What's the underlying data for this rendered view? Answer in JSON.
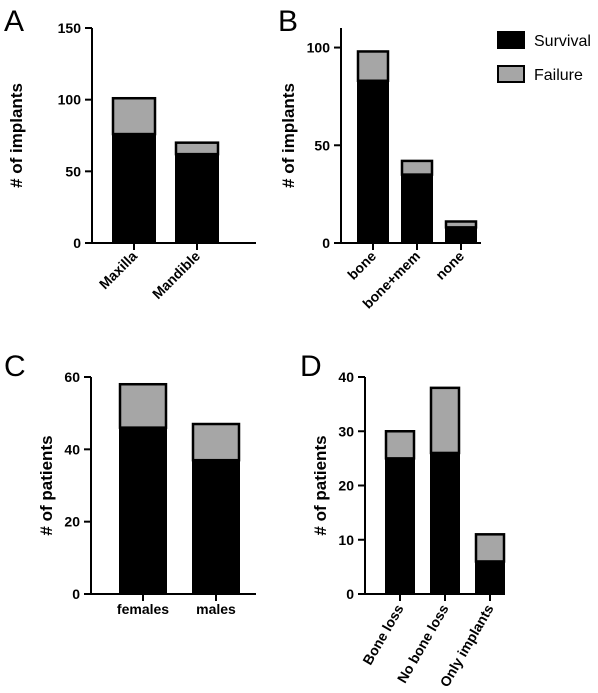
{
  "colors": {
    "survival": "#000000",
    "failure": "#a6a6a6",
    "outline": "#000000"
  },
  "legend": [
    {
      "label": "Survival",
      "color": "#000000"
    },
    {
      "label": "Failure",
      "color": "#a6a6a6"
    }
  ],
  "chart_data": [
    {
      "type": "bar",
      "panel": "A",
      "ylabel": "# of implants",
      "ylim": [
        0,
        150
      ],
      "yticks": [
        0,
        50,
        100,
        150
      ],
      "categories": [
        "Maxilla",
        "Mandible"
      ],
      "series": [
        {
          "name": "Survival",
          "values": [
            76,
            62
          ]
        },
        {
          "name": "Failure",
          "values": [
            25,
            8
          ]
        }
      ]
    },
    {
      "type": "bar",
      "panel": "B",
      "ylabel": "# of implants",
      "ylim": [
        0,
        110
      ],
      "yticks": [
        0,
        50,
        100
      ],
      "categories": [
        "bone",
        "bone+mem",
        "none"
      ],
      "series": [
        {
          "name": "Survival",
          "values": [
            83,
            35,
            8
          ]
        },
        {
          "name": "Failure",
          "values": [
            15,
            7,
            3
          ]
        }
      ]
    },
    {
      "type": "bar",
      "panel": "C",
      "ylabel": "# of patients",
      "ylim": [
        0,
        60
      ],
      "yticks": [
        0,
        20,
        40,
        60
      ],
      "categories": [
        "females",
        "males"
      ],
      "series": [
        {
          "name": "Survival",
          "values": [
            46,
            37
          ]
        },
        {
          "name": "Failure",
          "values": [
            12,
            10
          ]
        }
      ]
    },
    {
      "type": "bar",
      "panel": "D",
      "ylabel": "# of patients",
      "ylim": [
        0,
        40
      ],
      "yticks": [
        0,
        10,
        20,
        30,
        40
      ],
      "categories": [
        "Bone loss",
        "No bone loss",
        "Only implants"
      ],
      "series": [
        {
          "name": "Survival",
          "values": [
            25,
            26,
            6
          ]
        },
        {
          "name": "Failure",
          "values": [
            5,
            12,
            5
          ]
        }
      ]
    }
  ]
}
